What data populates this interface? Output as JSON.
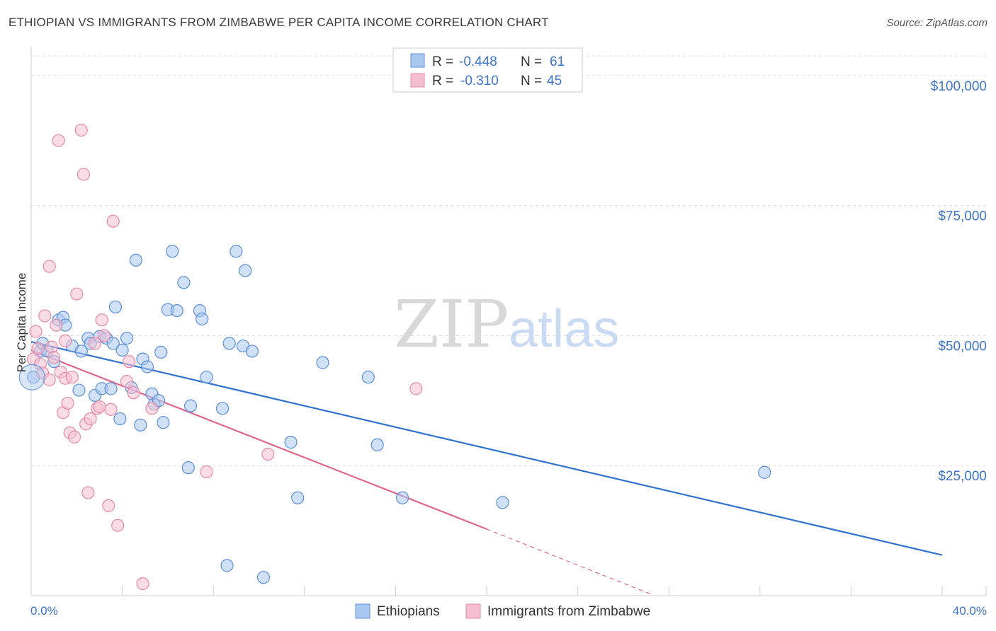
{
  "header": {
    "title": "ETHIOPIAN VS IMMIGRANTS FROM ZIMBABWE PER CAPITA INCOME CORRELATION CHART",
    "source": "Source: ZipAtlas.com"
  },
  "watermark": {
    "zip": "ZIP",
    "atlas": "atlas"
  },
  "colors": {
    "blue_fill": "#a9c8f0",
    "blue_stroke": "#5b8fd6",
    "blue_line": "#2f72d0",
    "pink_fill": "#f6bfd0",
    "pink_stroke": "#e58aa8",
    "pink_line": "#e0668f",
    "axis_text": "#3d74c7",
    "grid": "#dddddd"
  },
  "legend_top": {
    "rows": [
      {
        "r_label": "R =",
        "r_value": "-0.448",
        "n_label": "N =",
        "n_value": "61"
      },
      {
        "r_label": "R =",
        "r_value": "-0.310",
        "n_label": "N =",
        "n_value": "45"
      }
    ]
  },
  "legend_bottom": {
    "items": [
      "Ethiopians",
      "Immigrants from Zimbabwe"
    ]
  },
  "chart_data": {
    "type": "scatter",
    "title": "ETHIOPIAN VS IMMIGRANTS FROM ZIMBABWE PER CAPITA INCOME CORRELATION CHART",
    "xlabel": "",
    "ylabel": "Per Capita Income",
    "xlim": [
      0,
      40
    ],
    "ylim": [
      0,
      105000
    ],
    "x_tick_labels": [
      "0.0%",
      "40.0%"
    ],
    "y_ticks": [
      25000,
      50000,
      75000,
      100000
    ],
    "y_tick_labels": [
      "$25,000",
      "$50,000",
      "$75,000",
      "$100,000"
    ],
    "grid": true,
    "series": [
      {
        "name": "Ethiopians",
        "trend": {
          "x": [
            0,
            40
          ],
          "y": [
            48800,
            7800
          ]
        },
        "points": [
          [
            0.1,
            42000
          ],
          [
            0.4,
            47000
          ],
          [
            0.5,
            48500
          ],
          [
            0.7,
            47000
          ],
          [
            1.0,
            45000
          ],
          [
            1.2,
            53000
          ],
          [
            1.4,
            53500
          ],
          [
            1.5,
            52000
          ],
          [
            1.8,
            48000
          ],
          [
            2.2,
            47000
          ],
          [
            2.5,
            49500
          ],
          [
            2.6,
            48500
          ],
          [
            2.1,
            39500
          ],
          [
            2.8,
            38500
          ],
          [
            3.0,
            49800
          ],
          [
            3.1,
            39800
          ],
          [
            3.3,
            49500
          ],
          [
            3.5,
            39800
          ],
          [
            3.6,
            48500
          ],
          [
            3.7,
            55500
          ],
          [
            3.9,
            34000
          ],
          [
            4.0,
            47200
          ],
          [
            4.2,
            49500
          ],
          [
            4.4,
            40000
          ],
          [
            4.6,
            64500
          ],
          [
            4.8,
            32800
          ],
          [
            4.9,
            45500
          ],
          [
            5.1,
            44000
          ],
          [
            5.3,
            38800
          ],
          [
            5.4,
            36800
          ],
          [
            5.6,
            37500
          ],
          [
            5.7,
            46800
          ],
          [
            5.8,
            33300
          ],
          [
            6.0,
            55000
          ],
          [
            6.2,
            66200
          ],
          [
            6.4,
            54800
          ],
          [
            6.7,
            60200
          ],
          [
            6.9,
            24600
          ],
          [
            7.0,
            36500
          ],
          [
            7.4,
            54800
          ],
          [
            7.5,
            53200
          ],
          [
            7.7,
            42000
          ],
          [
            8.4,
            36000
          ],
          [
            8.6,
            5800
          ],
          [
            8.7,
            48500
          ],
          [
            9.0,
            66200
          ],
          [
            9.3,
            48000
          ],
          [
            9.4,
            62500
          ],
          [
            9.7,
            47000
          ],
          [
            10.2,
            3500
          ],
          [
            11.4,
            29500
          ],
          [
            11.7,
            18800
          ],
          [
            12.8,
            44800
          ],
          [
            14.8,
            42000
          ],
          [
            15.2,
            29000
          ],
          [
            16.3,
            18800
          ],
          [
            20.7,
            17900
          ],
          [
            32.2,
            23700
          ]
        ]
      },
      {
        "name": "Immigrants from Zimbabwe",
        "trend": {
          "x": [
            0,
            20
          ],
          "y": [
            47200,
            12800
          ]
        },
        "trend_dashed": {
          "x": [
            20,
            27.2
          ],
          "y": [
            12800,
            300
          ]
        },
        "points": [
          [
            0.1,
            45500
          ],
          [
            0.2,
            50800
          ],
          [
            0.3,
            47500
          ],
          [
            0.4,
            44500
          ],
          [
            0.5,
            42800
          ],
          [
            0.6,
            53800
          ],
          [
            0.8,
            63300
          ],
          [
            0.8,
            41500
          ],
          [
            0.9,
            47800
          ],
          [
            1.0,
            45800
          ],
          [
            1.1,
            52000
          ],
          [
            1.2,
            87500
          ],
          [
            1.3,
            43000
          ],
          [
            1.4,
            35200
          ],
          [
            1.5,
            49000
          ],
          [
            1.5,
            41800
          ],
          [
            1.6,
            37000
          ],
          [
            1.7,
            31300
          ],
          [
            1.8,
            42000
          ],
          [
            1.9,
            30500
          ],
          [
            2.0,
            58000
          ],
          [
            2.2,
            89500
          ],
          [
            2.3,
            81000
          ],
          [
            2.4,
            33000
          ],
          [
            2.5,
            19800
          ],
          [
            2.6,
            34000
          ],
          [
            2.8,
            48500
          ],
          [
            2.9,
            36000
          ],
          [
            3.0,
            36300
          ],
          [
            3.1,
            53000
          ],
          [
            3.2,
            50000
          ],
          [
            3.4,
            17300
          ],
          [
            3.5,
            35800
          ],
          [
            3.6,
            72000
          ],
          [
            3.8,
            13500
          ],
          [
            4.2,
            41200
          ],
          [
            4.3,
            45000
          ],
          [
            4.5,
            39000
          ],
          [
            4.9,
            2300
          ],
          [
            5.3,
            36000
          ],
          [
            7.7,
            23800
          ],
          [
            10.4,
            27200
          ],
          [
            16.9,
            39800
          ]
        ]
      }
    ]
  }
}
